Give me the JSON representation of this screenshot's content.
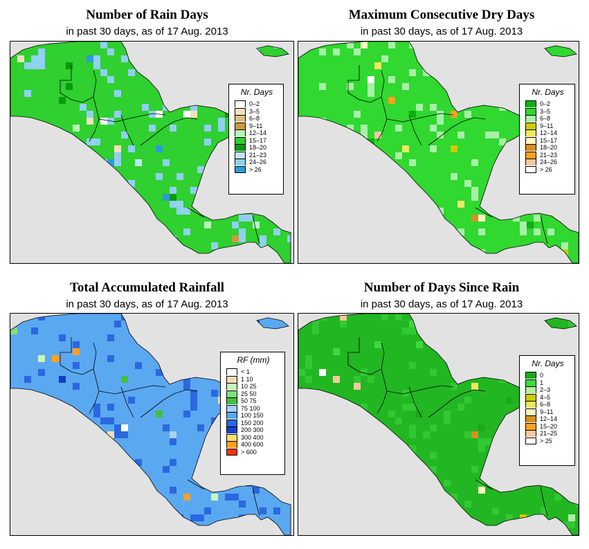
{
  "colors": {
    "background": "#e2e2e2",
    "border": "#000000"
  },
  "panels": [
    {
      "title": "Number of Rain Days",
      "subtitle": "in past 30 days, as of  17 Aug. 2013",
      "legend_title": "Nr. Days",
      "base_color": "#2fd02f",
      "accent_color": "#90d0f0",
      "legend": [
        {
          "label": "0–2",
          "color": "#ffffff"
        },
        {
          "label": "3–5",
          "color": "#f1e2bb"
        },
        {
          "label": "6–8",
          "color": "#dcc088"
        },
        {
          "label": "9–11",
          "color": "#c99a40"
        },
        {
          "label": "12–14",
          "color": "#b6f7b6"
        },
        {
          "label": "15–17",
          "color": "#2fd02f"
        },
        {
          "label": "18–20",
          "color": "#0a9a0a"
        },
        {
          "label": "21–23",
          "color": "#c0e4f8"
        },
        {
          "label": "24–26",
          "color": "#90d0f0"
        },
        {
          "label": "> 26",
          "color": "#2e9ad8"
        }
      ]
    },
    {
      "title": "Maximum Consecutive Dry Days",
      "subtitle": "in past 30 days, as of  17 Aug. 2013",
      "legend_title": "Nr. Days",
      "base_color": "#30d830",
      "accent_color": "#a8f0a8",
      "legend": [
        {
          "label": "0–2",
          "color": "#0fb00f"
        },
        {
          "label": "3–5",
          "color": "#30d830"
        },
        {
          "label": "6–8",
          "color": "#a8f0a8"
        },
        {
          "label": "9–11",
          "color": "#cccc00"
        },
        {
          "label": "12–14",
          "color": "#f0e860"
        },
        {
          "label": "15–17",
          "color": "#fff7c0"
        },
        {
          "label": "18–20",
          "color": "#d89020"
        },
        {
          "label": "21–23",
          "color": "#ffa020"
        },
        {
          "label": "24–26",
          "color": "#f5c8a0"
        },
        {
          "label": "> 26",
          "color": "#ffffff"
        }
      ]
    },
    {
      "title": "Total Accumulated Rainfall",
      "subtitle": "in past 30 days, as of  17 Aug. 2013",
      "legend_title": "RF (mm)",
      "base_color": "#5aa8f0",
      "accent_color": "#2a68e0",
      "legend": [
        {
          "label": "< 1",
          "color": "#ffffff"
        },
        {
          "label": "1   10",
          "color": "#f3dcb5"
        },
        {
          "label": "10   25",
          "color": "#c8f7b8"
        },
        {
          "label": "25   50",
          "color": "#80e080"
        },
        {
          "label": "50   75",
          "color": "#40c040"
        },
        {
          "label": "75   100",
          "color": "#a8d0f8"
        },
        {
          "label": "100   150",
          "color": "#5aa8f0"
        },
        {
          "label": "150   200",
          "color": "#2a68e0"
        },
        {
          "label": "200   300",
          "color": "#1040c8"
        },
        {
          "label": "300   400",
          "color": "#ffe070"
        },
        {
          "label": "400   600",
          "color": "#ffa020"
        },
        {
          "label": "> 600",
          "color": "#ff3010"
        }
      ]
    },
    {
      "title": "Number of Days Since Rain",
      "subtitle": "in past 30 days, as of  17 Aug. 2013",
      "legend_title": "Nr. Days",
      "base_color": "#22b622",
      "accent_color": "#32c832",
      "legend": [
        {
          "label": "0",
          "color": "#1aaa1a"
        },
        {
          "label": "1",
          "color": "#40d840"
        },
        {
          "label": "2–3",
          "color": "#b0f0a0"
        },
        {
          "label": "4–5",
          "color": "#cccc00"
        },
        {
          "label": "6–8",
          "color": "#f0e860"
        },
        {
          "label": "9–11",
          "color": "#fff7c0"
        },
        {
          "label": "12–14",
          "color": "#d89020"
        },
        {
          "label": "15–20",
          "color": "#ffa020"
        },
        {
          "label": "21–25",
          "color": "#f5c8a0"
        },
        {
          "label": "> 25",
          "color": "#ffffff"
        }
      ]
    }
  ]
}
